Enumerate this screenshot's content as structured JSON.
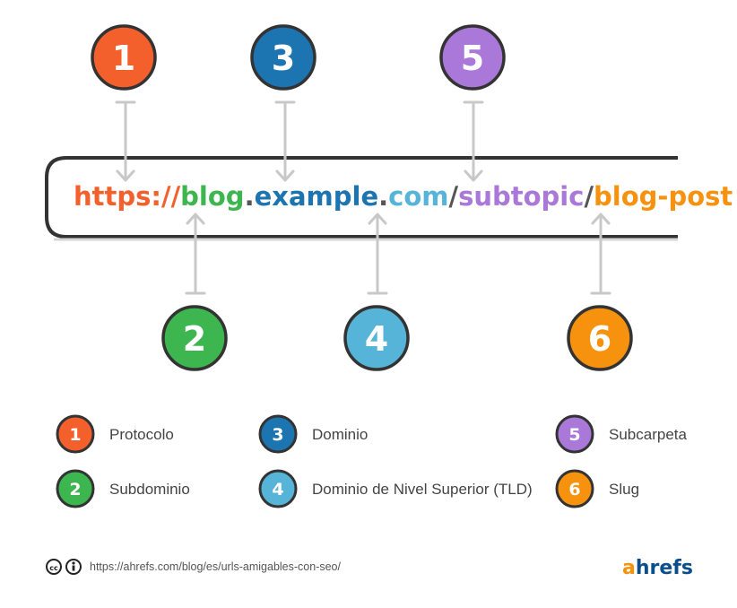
{
  "url_parts": [
    {
      "text": "https://",
      "color": "#f4602b"
    },
    {
      "text": "blog",
      "color": "#3db64f"
    },
    {
      "text": ".",
      "color": "#555555"
    },
    {
      "text": "example",
      "color": "#1c74b0"
    },
    {
      "text": ".",
      "color": "#555555"
    },
    {
      "text": "com",
      "color": "#56b4d8"
    },
    {
      "text": "/",
      "color": "#555555"
    },
    {
      "text": "subtopic",
      "color": "#a978d8"
    },
    {
      "text": "/",
      "color": "#555555"
    },
    {
      "text": "blog-post",
      "color": "#f7920f"
    }
  ],
  "markers": [
    {
      "number": "1",
      "color": "#f4602b"
    },
    {
      "number": "2",
      "color": "#3db64f"
    },
    {
      "number": "3",
      "color": "#1c74b0"
    },
    {
      "number": "4",
      "color": "#56b4d8"
    },
    {
      "number": "5",
      "color": "#a978d8"
    },
    {
      "number": "6",
      "color": "#f7920f"
    }
  ],
  "legend": [
    {
      "number": "1",
      "label": "Protocolo",
      "color": "#f4602b"
    },
    {
      "number": "2",
      "label": "Subdominio",
      "color": "#3db64f"
    },
    {
      "number": "3",
      "label": "Dominio",
      "color": "#1c74b0"
    },
    {
      "number": "4",
      "label": "Dominio de Nivel Superior (TLD)",
      "color": "#56b4d8"
    },
    {
      "number": "5",
      "label": "Subcarpeta",
      "color": "#a978d8"
    },
    {
      "number": "6",
      "label": "Slug",
      "color": "#f7920f"
    }
  ],
  "footer": {
    "source_url": "https://ahrefs.com/blog/es/urls-amigables-con-seo/",
    "license_icons": [
      "creative-commons-icon",
      "attribution-icon"
    ]
  },
  "brand": {
    "a": "a",
    "rest": "hrefs",
    "a_color": "#f7920f",
    "rest_color": "#0a4e8c"
  },
  "colors": {
    "outline": "#333333",
    "arrow": "#c8c8c8",
    "box_border": "#333333"
  }
}
